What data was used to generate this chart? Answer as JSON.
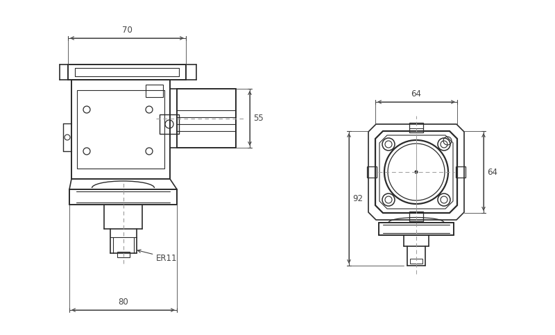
{
  "bg_color": "#ffffff",
  "line_color": "#2a2a2a",
  "dim_color": "#444444",
  "center_line_color": "#999999",
  "figsize": [
    8.0,
    4.83
  ],
  "dpi": 100,
  "labels": {
    "dim_70": "70",
    "dim_80": "80",
    "dim_55": "55",
    "dim_64w": "64",
    "dim_64h": "64",
    "dim_92": "92",
    "er11": "ER11"
  }
}
